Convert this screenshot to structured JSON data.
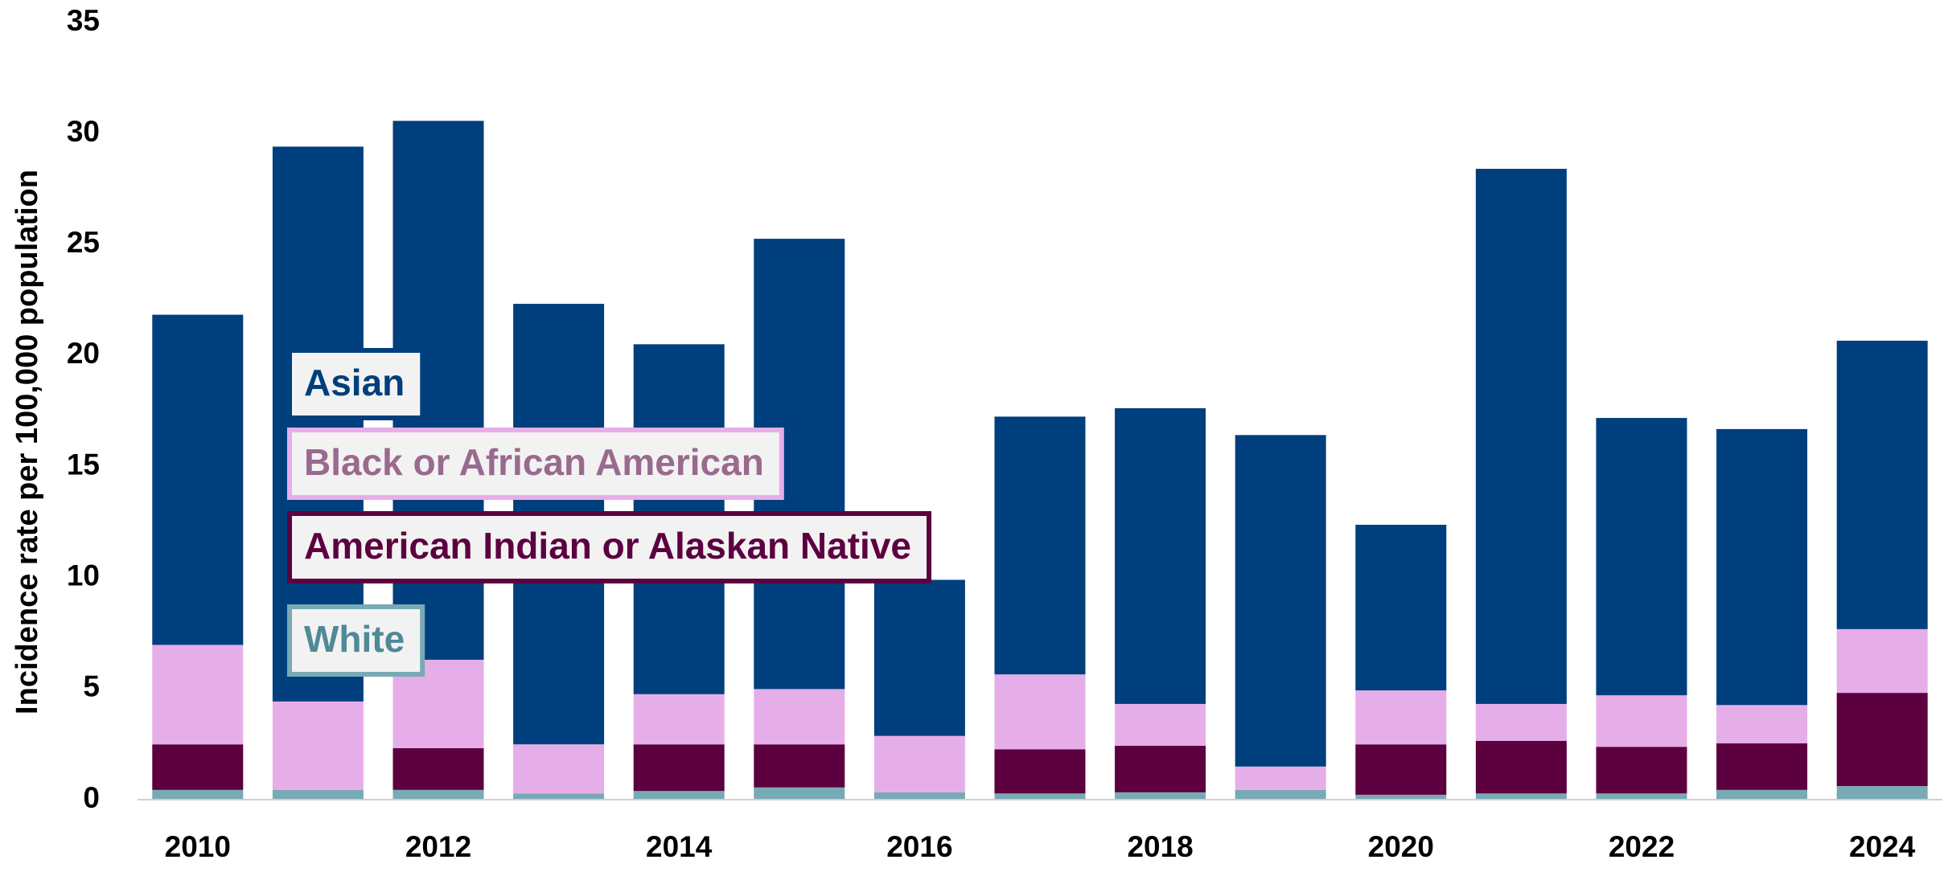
{
  "chart_data": {
    "type": "stacked_bar",
    "y_label": "Incidence rate per 100,000 population",
    "categories": [
      "2010",
      null,
      "2012",
      null,
      "2014",
      null,
      "2016",
      null,
      "2018",
      null,
      "2020",
      null,
      "2022",
      null,
      "2024"
    ],
    "series": [
      {
        "name": "White",
        "color": "#78aab5",
        "label_color": "#4f8a96",
        "values": [
          0.44,
          0.44,
          0.44,
          0.28,
          0.39,
          0.55,
          0.33,
          0.28,
          0.33,
          0.44,
          0.22,
          0.28,
          0.28,
          0.44,
          0.61
        ]
      },
      {
        "name": "American Indian or Alaskan Native",
        "color": "#5c0040",
        "label_color": "#5c0040",
        "values": [
          2.05,
          0,
          1.88,
          0,
          2.1,
          1.94,
          0,
          1.99,
          2.1,
          0,
          2.27,
          2.37,
          2.1,
          2.1,
          4.2
        ]
      },
      {
        "name": "Black or African American",
        "color": "#e6aee9",
        "label_color": "#9a6a8e",
        "values": [
          4.48,
          3.98,
          3.98,
          2.21,
          2.26,
          2.49,
          2.54,
          3.37,
          1.88,
          1.05,
          2.43,
          1.66,
          2.32,
          1.72,
          2.87
        ]
      },
      {
        "name": "Asian",
        "color": "#003f7d",
        "label_color": "#003f7d",
        "values": [
          14.87,
          24.99,
          24.27,
          19.84,
          15.76,
          20.28,
          7.03,
          11.61,
          13.32,
          14.93,
          7.46,
          24.1,
          12.49,
          12.43,
          12.99
        ]
      }
    ],
    "ylim": [
      0,
      35
    ],
    "yticks": [
      0,
      5,
      10,
      15,
      20,
      25,
      30,
      35
    ],
    "grid": false
  }
}
